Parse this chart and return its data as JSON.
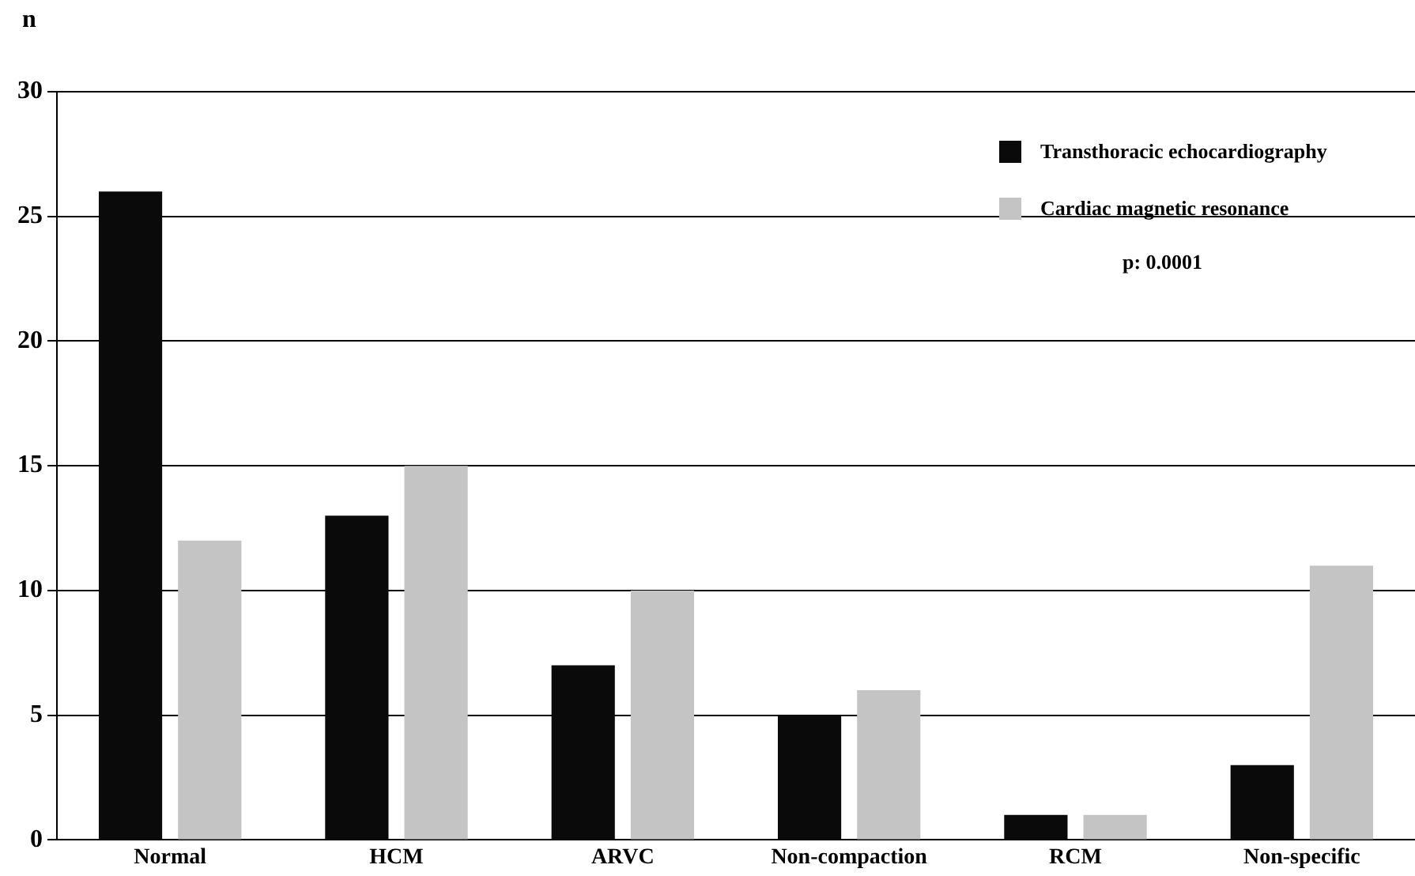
{
  "chart_data": {
    "type": "bar",
    "ylabel": "n",
    "categories": [
      "Normal",
      "HCM",
      "ARVC",
      "Non-compaction",
      "RCM",
      "Non-specific"
    ],
    "series": [
      {
        "name": "Transthoracic echocardiography",
        "color": "#0a0a0a",
        "values": [
          26,
          13,
          7,
          5,
          1,
          3
        ]
      },
      {
        "name": "Cardiac magnetic resonance",
        "color": "#c4c4c4",
        "values": [
          12,
          15,
          10,
          6,
          1,
          11
        ]
      }
    ],
    "ylim": [
      0,
      30
    ],
    "yticks": [
      0,
      5,
      10,
      15,
      20,
      25,
      30
    ],
    "grid": "y",
    "legend": "top right",
    "annotations": [
      "p: 0.0001"
    ]
  }
}
